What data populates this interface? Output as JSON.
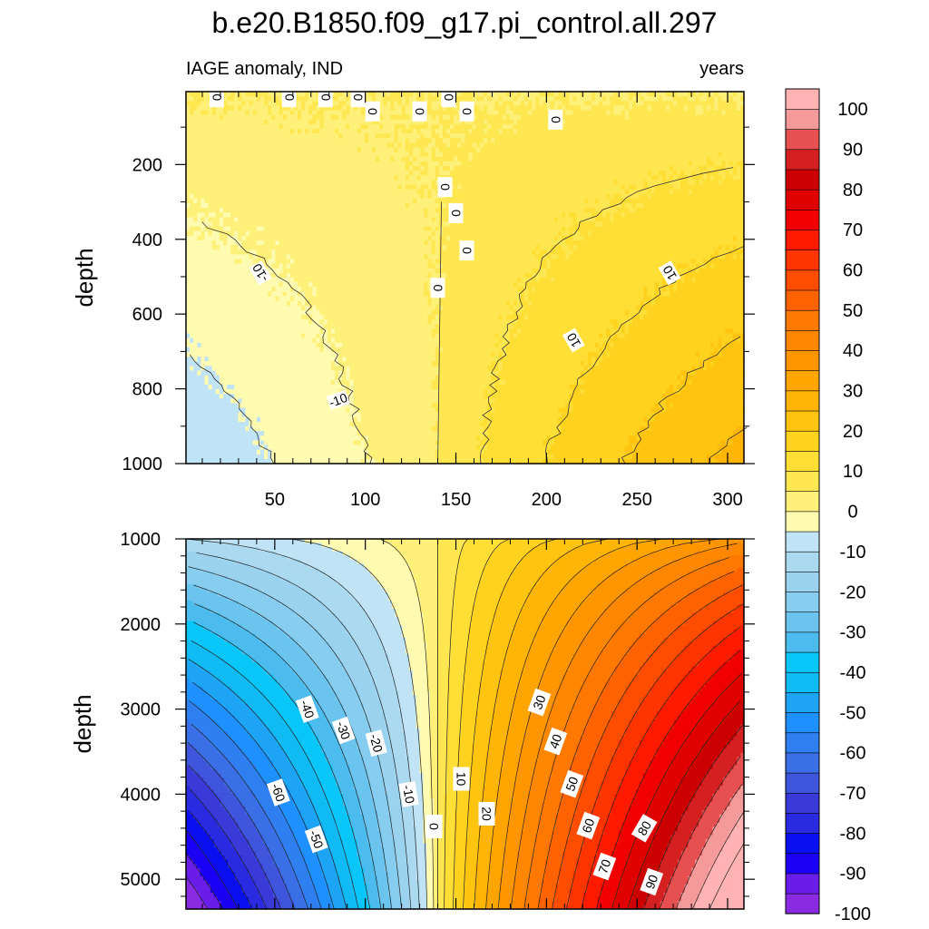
{
  "title": "b.e20.B1850.f09_g17.pi_control.all.297",
  "subtitle_left": "IAGE anomaly, IND",
  "subtitle_right": "years",
  "chart_data": [
    {
      "type": "heatmap",
      "panel": "upper",
      "xlabel": "",
      "ylabel": "depth",
      "xlim": [
        1,
        309
      ],
      "ylim": [
        1000,
        5
      ],
      "y_reversed": true,
      "x_ticks": [
        50,
        100,
        150,
        200,
        250,
        300
      ],
      "y_ticks": [
        200,
        400,
        600,
        800,
        1000
      ],
      "contour_interval": 5,
      "zero_contour_x": 140,
      "surface_values_at_x": {
        "x": [
          1,
          140,
          309
        ],
        "value": [
          0,
          0,
          0
        ]
      },
      "bottom_values_at_x": {
        "x": [
          1,
          140,
          309
        ],
        "value": [
          -14,
          0,
          22
        ]
      },
      "contour_labels": [
        "0",
        "0",
        "0",
        "0",
        "0",
        "0",
        "0",
        "0",
        "0",
        "0",
        "0",
        "0",
        "0",
        "-10",
        "-10",
        "10",
        "10"
      ]
    },
    {
      "type": "heatmap",
      "panel": "lower",
      "xlabel": "",
      "ylabel": "depth",
      "xlim": [
        1,
        309
      ],
      "ylim": [
        5350,
        1000
      ],
      "y_reversed": true,
      "x_ticks": [
        50,
        100,
        150,
        200,
        250,
        300
      ],
      "y_ticks": [
        1000,
        2000,
        3000,
        4000,
        5000
      ],
      "contour_interval": 5,
      "zero_contour_x": 140,
      "top_values_at_x": {
        "x": [
          1,
          140,
          309
        ],
        "value": [
          -15,
          0,
          32
        ]
      },
      "bottom_values_at_x": {
        "x": [
          1,
          140,
          309
        ],
        "value": [
          -100,
          0,
          105
        ]
      },
      "contour_labels": [
        "-40",
        "-30",
        "-20",
        "-60",
        "-10",
        "-50",
        "0",
        "10",
        "20",
        "30",
        "40",
        "50",
        "60",
        "70",
        "80",
        "90"
      ]
    }
  ],
  "colorbar": {
    "levels": [
      -100,
      -95,
      -90,
      -85,
      -80,
      -75,
      -70,
      -65,
      -60,
      -55,
      -50,
      -45,
      -40,
      -35,
      -30,
      -25,
      -20,
      -15,
      -10,
      -5,
      0,
      5,
      10,
      15,
      20,
      25,
      30,
      35,
      40,
      45,
      50,
      55,
      60,
      65,
      70,
      75,
      80,
      85,
      90,
      95,
      100
    ],
    "tick_labels": [
      "100",
      "90",
      "80",
      "70",
      "60",
      "50",
      "40",
      "30",
      "20",
      "10",
      "0",
      "-10",
      "-20",
      "-30",
      "-40",
      "-50",
      "-60",
      "-70",
      "-80",
      "-90",
      "-100"
    ],
    "colors": [
      "#8a2be2",
      "#6a1de8",
      "#1b00f5",
      "#0a0ff0",
      "#2a2ae0",
      "#3a3ad8",
      "#3f55dc",
      "#3a6fe6",
      "#2f7ff0",
      "#1e90ff",
      "#1ea4f5",
      "#10baf2",
      "#08c6f7",
      "#4cbcef",
      "#6ac4ee",
      "#86cdef",
      "#9bd3ef",
      "#abdaf0",
      "#c0e3f5",
      "#fffbb0",
      "#fff07a",
      "#ffe752",
      "#ffde36",
      "#ffd21f",
      "#ffc40f",
      "#ffb505",
      "#ffa500",
      "#ff9600",
      "#ff8700",
      "#ff7800",
      "#ff6300",
      "#ff4d00",
      "#ff3500",
      "#ff1a00",
      "#f00000",
      "#e00000",
      "#cc0000",
      "#d42020",
      "#e65050",
      "#f59a9a",
      "#ffb3b3"
    ]
  }
}
